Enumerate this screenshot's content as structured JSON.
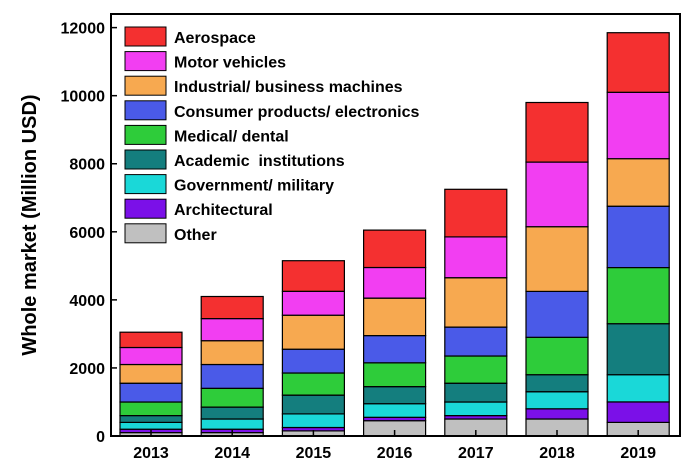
{
  "chart_data": {
    "type": "bar",
    "stacked": true,
    "title": "",
    "xlabel": "",
    "ylabel": "Whole market (Million USD)",
    "ylim": [
      0,
      12400
    ],
    "yticks": [
      0,
      2000,
      4000,
      6000,
      8000,
      10000,
      12000
    ],
    "grid": false,
    "legend_position": "top-left",
    "categories": [
      "2013",
      "2014",
      "2015",
      "2016",
      "2017",
      "2018",
      "2019"
    ],
    "series": [
      {
        "name": "Other",
        "color": "#c0c0c0",
        "values": [
          100,
          100,
          150,
          450,
          500,
          500,
          400
        ]
      },
      {
        "name": "Architectural",
        "color": "#7b10e8",
        "values": [
          100,
          100,
          100,
          100,
          100,
          300,
          600
        ]
      },
      {
        "name": "Government/ military",
        "color": "#1ad8d8",
        "values": [
          200,
          300,
          400,
          400,
          400,
          500,
          800
        ]
      },
      {
        "name": "Academic  institutions",
        "color": "#147e7e",
        "values": [
          200,
          350,
          550,
          500,
          550,
          500,
          1500
        ]
      },
      {
        "name": "Medical/ dental",
        "color": "#2ecc3a",
        "values": [
          400,
          550,
          650,
          700,
          800,
          1100,
          1650
        ]
      },
      {
        "name": "Consumer products/ electronics",
        "color": "#4a5ae8",
        "values": [
          550,
          700,
          700,
          800,
          850,
          1350,
          1800
        ]
      },
      {
        "name": "Industrial/ business machines",
        "color": "#f7a950",
        "values": [
          550,
          700,
          1000,
          1100,
          1450,
          1900,
          1400
        ]
      },
      {
        "name": "Motor vehicles",
        "color": "#f23ef2",
        "values": [
          500,
          650,
          700,
          900,
          1200,
          1900,
          1950
        ]
      },
      {
        "name": "Aerospace",
        "color": "#f43030",
        "values": [
          450,
          650,
          900,
          1100,
          1400,
          1750,
          1750
        ]
      }
    ]
  }
}
